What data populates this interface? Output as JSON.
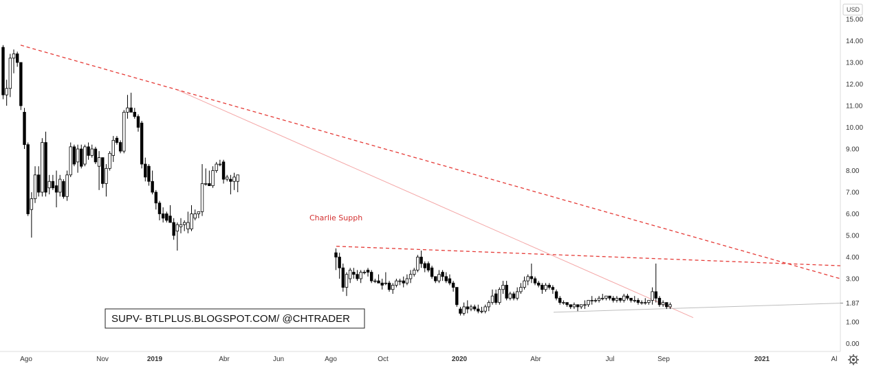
{
  "chart_data": {
    "type": "candlestick",
    "currency": "USD",
    "yticks": [
      "15.00",
      "14.00",
      "13.00",
      "12.00",
      "11.00",
      "10.00",
      "9.00",
      "8.00",
      "7.00",
      "6.00",
      "5.00",
      "4.00",
      "3.00",
      "1.87",
      "1.00",
      "0.00"
    ],
    "ylim": [
      0,
      15.5
    ],
    "xticks": [
      {
        "label": "Ago",
        "bold": false
      },
      {
        "label": "Nov",
        "bold": false
      },
      {
        "label": "2019",
        "bold": true
      },
      {
        "label": "Abr",
        "bold": false
      },
      {
        "label": "Jun",
        "bold": false
      },
      {
        "label": "Ago",
        "bold": false
      },
      {
        "label": "Oct",
        "bold": false
      },
      {
        "label": "2020",
        "bold": true
      },
      {
        "label": "Abr",
        "bold": false
      },
      {
        "label": "Jul",
        "bold": false
      },
      {
        "label": "Sep",
        "bold": false
      },
      {
        "label": "2021",
        "bold": true
      },
      {
        "label": "Al",
        "bold": false
      }
    ],
    "series": [
      {
        "segment": 1,
        "candles": [
          [
            13.7,
            13.8,
            11.3,
            11.5
          ],
          [
            11.5,
            12.2,
            11.0,
            11.8
          ],
          [
            11.8,
            13.4,
            11.4,
            13.2
          ],
          [
            13.2,
            13.6,
            12.5,
            13.4
          ],
          [
            13.4,
            13.5,
            12.8,
            13.0
          ],
          [
            13.0,
            13.0,
            10.8,
            11.0
          ],
          [
            10.7,
            10.9,
            9.0,
            9.2
          ],
          [
            9.2,
            9.3,
            5.9,
            6.0
          ],
          [
            6.2,
            7.0,
            4.9,
            6.7
          ],
          [
            6.7,
            8.2,
            6.5,
            7.8
          ],
          [
            7.8,
            8.2,
            6.8,
            7.0
          ],
          [
            7.0,
            9.5,
            6.8,
            9.3
          ],
          [
            9.3,
            9.8,
            6.8,
            7.0
          ],
          [
            7.2,
            7.8,
            6.9,
            7.5
          ],
          [
            7.5,
            7.8,
            7.1,
            7.2
          ],
          [
            7.3,
            8.0,
            6.3,
            7.0
          ],
          [
            7.0,
            7.8,
            6.8,
            7.6
          ],
          [
            7.5,
            7.6,
            6.7,
            6.8
          ],
          [
            6.8,
            8.0,
            6.6,
            7.8
          ],
          [
            7.8,
            9.3,
            7.7,
            9.1
          ],
          [
            9.1,
            9.2,
            8.2,
            8.3
          ],
          [
            8.4,
            9.2,
            7.9,
            9.0
          ],
          [
            9.0,
            9.2,
            8.1,
            8.2
          ],
          [
            8.3,
            9.2,
            8.2,
            9.1
          ],
          [
            9.1,
            9.3,
            8.5,
            8.7
          ],
          [
            8.7,
            9.2,
            8.6,
            9.0
          ],
          [
            9.0,
            9.1,
            8.3,
            8.4
          ],
          [
            8.2,
            8.9,
            7.1,
            8.6
          ],
          [
            8.6,
            8.6,
            7.2,
            7.4
          ],
          [
            7.4,
            8.3,
            6.8,
            8.1
          ],
          [
            8.1,
            8.9,
            8.0,
            8.8
          ],
          [
            8.7,
            9.6,
            8.4,
            9.4
          ],
          [
            9.5,
            9.6,
            9.2,
            9.3
          ],
          [
            9.3,
            9.4,
            8.8,
            8.9
          ],
          [
            8.9,
            10.8,
            8.8,
            10.7
          ],
          [
            10.7,
            11.5,
            10.4,
            10.9
          ],
          [
            10.9,
            11.6,
            10.7,
            10.7
          ],
          [
            10.7,
            10.9,
            10.4,
            10.5
          ],
          [
            10.5,
            10.6,
            9.8,
            10.0
          ],
          [
            10.2,
            10.3,
            8.1,
            8.3
          ],
          [
            8.3,
            8.6,
            7.5,
            7.7
          ],
          [
            8.2,
            8.3,
            7.3,
            7.5
          ],
          [
            7.5,
            8.0,
            6.9,
            7.0
          ],
          [
            7.0,
            7.1,
            6.2,
            6.5
          ],
          [
            6.5,
            6.6,
            5.7,
            6.0
          ],
          [
            6.0,
            6.3,
            5.6,
            5.8
          ],
          [
            6.0,
            6.1,
            5.6,
            5.7
          ],
          [
            5.9,
            6.4,
            5.6,
            5.6
          ],
          [
            5.6,
            5.8,
            4.8,
            5.0
          ],
          [
            5.2,
            5.6,
            4.3,
            5.5
          ],
          [
            5.4,
            5.8,
            5.1,
            5.5
          ],
          [
            5.5,
            5.7,
            5.2,
            5.6
          ],
          [
            5.3,
            6.1,
            5.1,
            5.6
          ],
          [
            5.3,
            6.4,
            5.2,
            6.0
          ],
          [
            5.8,
            6.2,
            5.7,
            6.0
          ],
          [
            6.0,
            6.1,
            5.8,
            6.1
          ],
          [
            6.1,
            8.3,
            5.9,
            7.4
          ],
          [
            7.4,
            8.1,
            7.3,
            7.4
          ],
          [
            7.4,
            8.0,
            7.3,
            7.3
          ],
          [
            7.3,
            8.2,
            7.2,
            8.0
          ],
          [
            8.0,
            8.4,
            7.9,
            8.3
          ],
          [
            8.3,
            8.5,
            8.2,
            8.3
          ],
          [
            8.4,
            8.5,
            7.4,
            7.6
          ],
          [
            7.6,
            7.8,
            7.5,
            7.7
          ],
          [
            7.6,
            7.8,
            6.9,
            7.5
          ],
          [
            7.5,
            7.9,
            7.1,
            7.7
          ],
          [
            7.5,
            7.8,
            7.0,
            7.8
          ]
        ]
      },
      {
        "segment": 2,
        "candles": [
          [
            4.2,
            4.4,
            3.4,
            4.0
          ],
          [
            4.0,
            4.2,
            3.0,
            3.5
          ],
          [
            3.5,
            3.7,
            2.4,
            2.6
          ],
          [
            2.6,
            3.3,
            2.2,
            3.2
          ],
          [
            3.0,
            3.5,
            2.8,
            3.4
          ],
          [
            3.3,
            3.5,
            3.0,
            3.2
          ],
          [
            3.2,
            3.4,
            2.9,
            3.0
          ],
          [
            3.0,
            3.4,
            2.8,
            3.3
          ],
          [
            3.3,
            3.4,
            3.2,
            3.3
          ],
          [
            3.4,
            3.5,
            3.1,
            3.3
          ],
          [
            3.3,
            3.4,
            2.8,
            2.9
          ],
          [
            2.9,
            3.0,
            2.8,
            2.9
          ],
          [
            2.9,
            3.2,
            2.8,
            2.8
          ],
          [
            2.8,
            3.0,
            2.5,
            2.7
          ],
          [
            2.8,
            3.3,
            2.7,
            2.8
          ],
          [
            2.8,
            2.9,
            2.4,
            2.5
          ],
          [
            2.5,
            2.8,
            2.3,
            2.7
          ],
          [
            2.7,
            3.0,
            2.6,
            2.9
          ],
          [
            2.9,
            3.0,
            2.7,
            2.9
          ],
          [
            2.9,
            3.1,
            2.6,
            2.8
          ],
          [
            2.8,
            3.2,
            2.7,
            3.0
          ],
          [
            3.0,
            3.4,
            2.8,
            3.2
          ],
          [
            3.2,
            3.5,
            3.1,
            3.4
          ],
          [
            3.4,
            4.1,
            3.3,
            4.0
          ],
          [
            4.0,
            4.3,
            3.5,
            3.7
          ],
          [
            3.7,
            3.8,
            3.3,
            3.5
          ],
          [
            3.7,
            3.8,
            3.3,
            3.4
          ],
          [
            3.5,
            3.6,
            3.0,
            3.1
          ],
          [
            3.1,
            3.1,
            2.8,
            2.9
          ],
          [
            2.9,
            3.4,
            2.8,
            3.2
          ],
          [
            3.3,
            3.4,
            2.9,
            3.1
          ],
          [
            3.1,
            3.3,
            2.8,
            2.9
          ],
          [
            3.0,
            3.2,
            2.7,
            2.8
          ],
          [
            2.8,
            2.9,
            2.4,
            2.6
          ],
          [
            2.6,
            2.6,
            1.7,
            1.8
          ],
          [
            1.6,
            1.7,
            1.3,
            1.4
          ],
          [
            1.4,
            1.9,
            1.3,
            1.7
          ],
          [
            1.7,
            2.0,
            1.4,
            1.6
          ],
          [
            1.6,
            1.8,
            1.5,
            1.7
          ],
          [
            1.7,
            1.8,
            1.5,
            1.6
          ],
          [
            1.6,
            1.8,
            1.4,
            1.5
          ],
          [
            1.5,
            1.7,
            1.4,
            1.5
          ],
          [
            1.5,
            1.8,
            1.4,
            1.7
          ],
          [
            1.7,
            2.0,
            1.5,
            1.9
          ],
          [
            1.9,
            2.5,
            1.8,
            2.2
          ],
          [
            2.3,
            2.5,
            1.8,
            1.9
          ],
          [
            1.9,
            2.6,
            1.8,
            2.5
          ],
          [
            2.5,
            2.9,
            2.3,
            2.7
          ],
          [
            2.7,
            2.9,
            2.0,
            2.1
          ],
          [
            2.1,
            2.4,
            2.0,
            2.3
          ],
          [
            2.3,
            2.4,
            2.0,
            2.1
          ],
          [
            2.1,
            2.6,
            2.0,
            2.4
          ],
          [
            2.4,
            2.8,
            2.3,
            2.6
          ],
          [
            2.6,
            3.1,
            2.5,
            2.9
          ],
          [
            2.9,
            3.2,
            2.7,
            3.1
          ],
          [
            3.1,
            3.7,
            2.8,
            3.0
          ],
          [
            3.0,
            3.1,
            2.7,
            2.8
          ],
          [
            2.8,
            2.9,
            2.6,
            2.7
          ],
          [
            2.7,
            2.8,
            2.3,
            2.5
          ],
          [
            2.5,
            2.8,
            2.4,
            2.7
          ],
          [
            2.7,
            2.8,
            2.5,
            2.6
          ],
          [
            2.6,
            2.7,
            2.3,
            2.5
          ],
          [
            2.4,
            2.5,
            2.0,
            2.1
          ],
          [
            2.1,
            2.2,
            1.8,
            1.9
          ],
          [
            1.9,
            2.0,
            1.8,
            1.9
          ],
          [
            1.9,
            1.9,
            1.7,
            1.8
          ],
          [
            1.8,
            1.8,
            1.6,
            1.7
          ],
          [
            1.7,
            1.9,
            1.6,
            1.8
          ],
          [
            1.8,
            1.8,
            1.5,
            1.7
          ],
          [
            1.7,
            1.8,
            1.6,
            1.8
          ],
          [
            1.8,
            2.0,
            1.6,
            1.8
          ],
          [
            1.8,
            2.0,
            1.7,
            2.0
          ],
          [
            2.0,
            2.2,
            1.8,
            2.0
          ],
          [
            2.0,
            2.1,
            1.9,
            2.0
          ],
          [
            2.0,
            2.2,
            1.9,
            2.1
          ],
          [
            2.1,
            2.3,
            2.0,
            2.1
          ],
          [
            2.1,
            2.2,
            2.0,
            2.2
          ],
          [
            2.2,
            2.2,
            2.0,
            2.1
          ],
          [
            2.1,
            2.2,
            1.9,
            2.0
          ],
          [
            2.0,
            2.2,
            1.9,
            2.1
          ],
          [
            2.1,
            2.1,
            1.9,
            2.0
          ],
          [
            2.0,
            2.3,
            1.9,
            2.2
          ],
          [
            2.2,
            2.3,
            2.0,
            2.1
          ],
          [
            2.1,
            2.1,
            1.9,
            2.0
          ],
          [
            2.0,
            2.2,
            1.9,
            2.0
          ],
          [
            2.0,
            2.1,
            1.8,
            1.9
          ],
          [
            1.9,
            2.0,
            1.8,
            1.9
          ],
          [
            1.9,
            2.1,
            1.8,
            1.9
          ],
          [
            1.9,
            2.0,
            1.8,
            2.0
          ],
          [
            2.0,
            2.6,
            1.8,
            2.4
          ],
          [
            2.4,
            3.7,
            1.9,
            2.1
          ],
          [
            2.1,
            2.2,
            1.7,
            1.8
          ],
          [
            1.8,
            2.0,
            1.7,
            1.9
          ],
          [
            1.9,
            1.9,
            1.6,
            1.7
          ],
          [
            1.7,
            1.9,
            1.6,
            1.8
          ]
        ]
      }
    ],
    "annotation": "Charlie Supph",
    "watermark": "SUPV- BTLPLUS.BLOGSPOT.COM/ @CHTRADER",
    "colors": {
      "bull_body": "#ffffff",
      "bear_body": "#000000",
      "candle_outline": "#000000",
      "trendline": "#e53935",
      "thin_trendline": "#f4a6a6",
      "support_line": "#bdbdbd",
      "annotation": "#d32f2f",
      "axis_border": "#dddddd"
    }
  }
}
